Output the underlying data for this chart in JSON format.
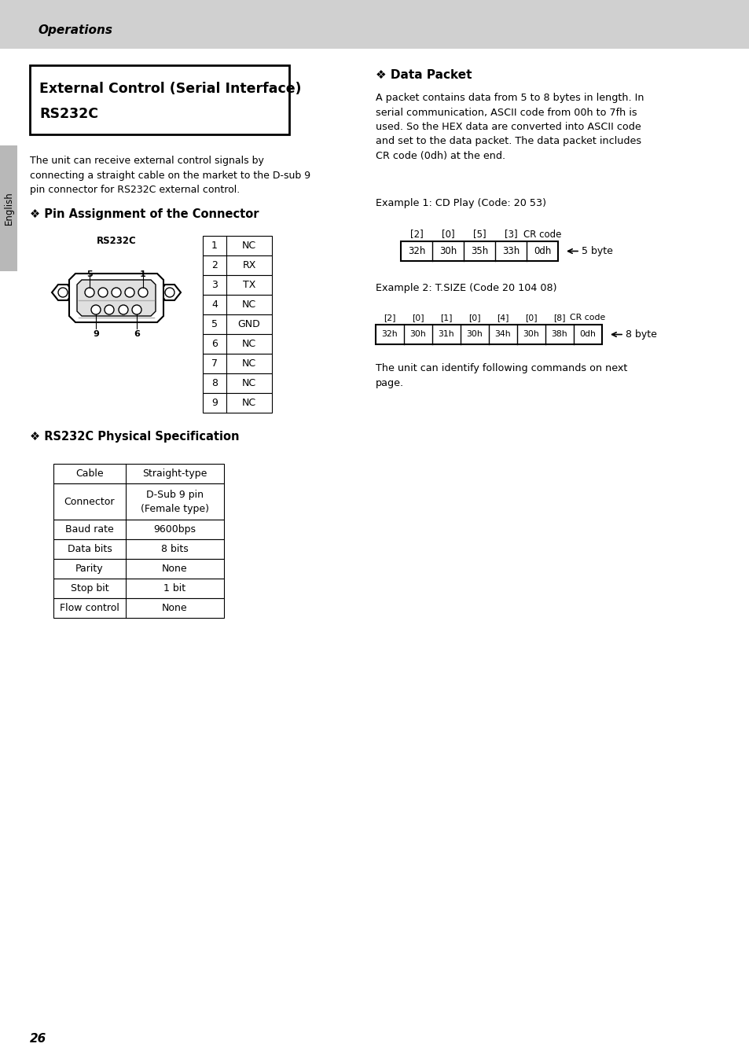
{
  "page_bg": "#e0e0e0",
  "content_bg": "#ffffff",
  "header_bg": "#d0d0d0",
  "header_text": "Operations",
  "sidebar_bg": "#b8b8b8",
  "sidebar_text": "English",
  "title_box_text_line1": "External Control (Serial Interface)",
  "title_box_text_line2": "RS232C",
  "intro_text": "The unit can receive external control signals by\nconnecting a straight cable on the market to the D-sub 9\npin connector for RS232C external control.",
  "pin_section_title": "❖ Pin Assignment of the Connector",
  "pin_table_rows": [
    [
      "1",
      "NC"
    ],
    [
      "2",
      "RX"
    ],
    [
      "3",
      "TX"
    ],
    [
      "4",
      "NC"
    ],
    [
      "5",
      "GND"
    ],
    [
      "6",
      "NC"
    ],
    [
      "7",
      "NC"
    ],
    [
      "8",
      "NC"
    ],
    [
      "9",
      "NC"
    ]
  ],
  "rs232c_label": "RS232C",
  "spec_section_title": "❖ RS232C Physical Specification",
  "spec_table_rows": [
    [
      "Cable",
      "Straight-type"
    ],
    [
      "Connector",
      "D-Sub 9 pin\n(Female type)"
    ],
    [
      "Baud rate",
      "9600bps"
    ],
    [
      "Data bits",
      "8 bits"
    ],
    [
      "Parity",
      "None"
    ],
    [
      "Stop bit",
      "1 bit"
    ],
    [
      "Flow control",
      "None"
    ]
  ],
  "data_packet_title": "❖ Data Packet",
  "data_packet_body": "A packet contains data from 5 to 8 bytes in length. In\nserial communication, ASCII code from 00h to 7fh is\nused. So the HEX data are converted into ASCII code\nand set to the data packet. The data packet includes\nCR code (0dh) at the end.",
  "example1_label": "Example 1: CD Play (Code: 20 53)",
  "example1_headers": [
    "[2]",
    "[0]",
    "[5]",
    "[3]",
    "CR code"
  ],
  "example1_values": [
    "32h",
    "30h",
    "35h",
    "33h",
    "0dh"
  ],
  "example2_label": "Example 2: T.SIZE (Code 20 104 08)",
  "example2_headers": [
    "[2]",
    "[0]",
    "[1]",
    "[0]",
    "[4]",
    "[0]",
    "[8]",
    "CR code"
  ],
  "example2_values": [
    "32h",
    "30h",
    "31h",
    "30h",
    "34h",
    "30h",
    "38h",
    "0dh"
  ],
  "identify_text": "The unit can identify following commands on next\npage.",
  "page_number": "26",
  "text_color": "#000000",
  "border_color": "#000000"
}
